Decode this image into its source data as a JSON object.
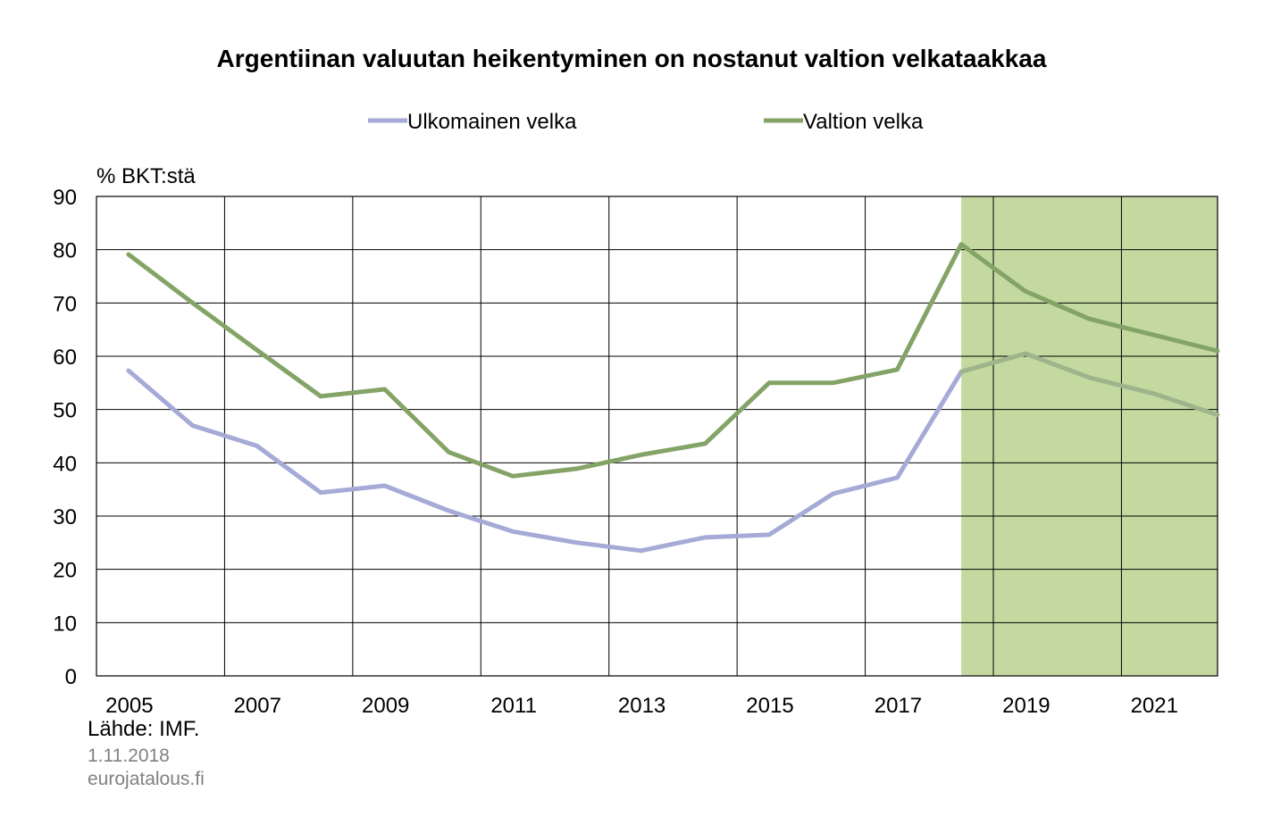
{
  "chart_data": {
    "type": "line",
    "title": "Argentiinan valuutan heikentyminen on nostanut valtion velkataakkaa",
    "ylabel": "% BKT:stä",
    "xlabel": "",
    "ylim": [
      0,
      90
    ],
    "yticks": [
      "0",
      "10",
      "20",
      "30",
      "40",
      "50",
      "60",
      "70",
      "80",
      "90"
    ],
    "xticks": [
      "2005",
      "2007",
      "2009",
      "2011",
      "2013",
      "2015",
      "2017",
      "2019",
      "2021"
    ],
    "grid": true,
    "legend_position": "top",
    "x": [
      2004.5,
      2005.5,
      2006.5,
      2007.5,
      2008.5,
      2009.5,
      2010.5,
      2011.5,
      2012.5,
      2013.5,
      2014.5,
      2015.5,
      2016.5,
      2017.5,
      2018.5,
      2019.5,
      2020.5,
      2021.5
    ],
    "series": [
      {
        "name": "Ulkomainen velka",
        "color": "#a5aad6",
        "forecast_color": "#9fb48b",
        "values": [
          57.3,
          47.0,
          43.2,
          34.4,
          35.7,
          31.0,
          27.1,
          25.0,
          23.5,
          26.0,
          26.5,
          34.2,
          37.2,
          57.1,
          60.5,
          56.0,
          53.0,
          49.0
        ]
      },
      {
        "name": "Valtion velka",
        "color": "#84a467",
        "forecast_color": "#84a467",
        "values": [
          79.1,
          70.0,
          61.2,
          52.5,
          53.8,
          42.0,
          37.5,
          38.9,
          41.5,
          43.6,
          55.0,
          55.0,
          57.5,
          81.0,
          72.2,
          67.0,
          64.0,
          61.0
        ]
      }
    ],
    "forecast_start": 2017.5,
    "forecast_shade_color": "#c4d9a0"
  },
  "footer": {
    "source": "Lähde: IMF.",
    "date": "1.11.2018",
    "site": "eurojatalous.fi"
  }
}
